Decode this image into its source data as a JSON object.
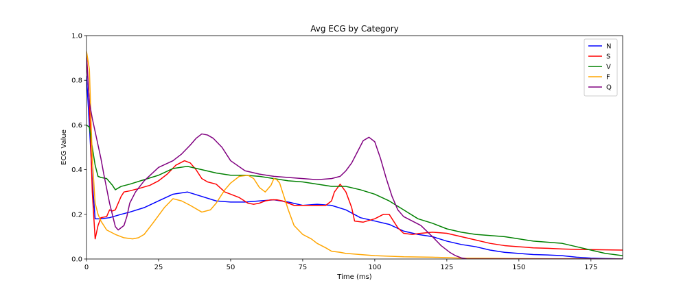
{
  "chart_data": {
    "type": "line",
    "title": "Avg ECG by Category",
    "xlabel": "Time (ms)",
    "ylabel": "ECG Value",
    "xlim": [
      0,
      186
    ],
    "ylim": [
      0,
      1.0
    ],
    "xticks": [
      0,
      25,
      50,
      75,
      100,
      125,
      150,
      175
    ],
    "yticks": [
      0.0,
      0.2,
      0.4,
      0.6,
      0.8,
      1.0
    ],
    "ytick_labels": [
      "0.0",
      "0.2",
      "0.4",
      "0.6",
      "0.8",
      "1.0"
    ],
    "grid": false,
    "legend_position": "top-right",
    "series": [
      {
        "name": "N",
        "color": "#0000ff",
        "x": [
          0,
          1,
          2,
          3,
          5,
          8,
          12,
          15,
          20,
          25,
          30,
          35,
          40,
          45,
          50,
          55,
          60,
          65,
          70,
          75,
          80,
          85,
          90,
          95,
          100,
          105,
          110,
          115,
          120,
          125,
          130,
          135,
          140,
          145,
          150,
          155,
          160,
          165,
          170,
          175,
          180,
          186
        ],
        "y": [
          0.82,
          0.6,
          0.35,
          0.18,
          0.18,
          0.185,
          0.2,
          0.21,
          0.23,
          0.26,
          0.29,
          0.3,
          0.28,
          0.26,
          0.255,
          0.255,
          0.26,
          0.265,
          0.255,
          0.24,
          0.245,
          0.24,
          0.22,
          0.185,
          0.17,
          0.155,
          0.125,
          0.11,
          0.1,
          0.08,
          0.065,
          0.055,
          0.04,
          0.03,
          0.025,
          0.02,
          0.018,
          0.015,
          0.008,
          0.004,
          0.002,
          0.0
        ]
      },
      {
        "name": "S",
        "color": "#ff0000",
        "x": [
          0,
          1,
          2,
          3,
          4,
          5,
          7,
          8,
          9,
          10,
          12,
          13,
          15,
          18,
          22,
          25,
          28,
          31,
          34,
          36,
          38,
          40,
          42,
          45,
          48,
          50,
          53,
          56,
          58,
          60,
          62,
          64,
          66,
          68,
          70,
          72,
          75,
          78,
          80,
          83,
          85,
          86,
          88,
          90,
          92,
          93,
          96,
          100,
          103,
          105,
          108,
          110,
          113,
          116,
          120,
          125,
          130,
          135,
          140,
          145,
          150,
          155,
          160,
          165,
          170,
          175,
          180,
          186
        ],
        "y": [
          0.92,
          0.7,
          0.3,
          0.09,
          0.15,
          0.185,
          0.19,
          0.22,
          0.215,
          0.22,
          0.28,
          0.3,
          0.305,
          0.315,
          0.33,
          0.35,
          0.38,
          0.42,
          0.44,
          0.43,
          0.4,
          0.36,
          0.345,
          0.335,
          0.3,
          0.29,
          0.275,
          0.25,
          0.245,
          0.25,
          0.26,
          0.265,
          0.265,
          0.26,
          0.25,
          0.24,
          0.24,
          0.24,
          0.24,
          0.24,
          0.26,
          0.3,
          0.335,
          0.3,
          0.23,
          0.17,
          0.165,
          0.18,
          0.2,
          0.2,
          0.14,
          0.115,
          0.11,
          0.115,
          0.12,
          0.115,
          0.1,
          0.085,
          0.07,
          0.06,
          0.055,
          0.05,
          0.048,
          0.045,
          0.043,
          0.042,
          0.041,
          0.04
        ]
      },
      {
        "name": "V",
        "color": "#008000",
        "x": [
          0,
          1,
          2,
          3,
          4,
          5,
          7,
          9,
          10,
          12,
          15,
          20,
          25,
          30,
          35,
          40,
          45,
          50,
          55,
          60,
          65,
          70,
          75,
          80,
          85,
          90,
          95,
          100,
          105,
          110,
          115,
          120,
          125,
          130,
          135,
          140,
          145,
          150,
          155,
          160,
          165,
          170,
          175,
          180,
          186
        ],
        "y": [
          0.6,
          0.59,
          0.5,
          0.42,
          0.37,
          0.365,
          0.36,
          0.33,
          0.31,
          0.325,
          0.335,
          0.355,
          0.375,
          0.405,
          0.415,
          0.4,
          0.385,
          0.375,
          0.375,
          0.37,
          0.36,
          0.35,
          0.345,
          0.335,
          0.325,
          0.325,
          0.31,
          0.29,
          0.26,
          0.22,
          0.18,
          0.16,
          0.135,
          0.12,
          0.11,
          0.105,
          0.1,
          0.09,
          0.08,
          0.075,
          0.07,
          0.055,
          0.04,
          0.025,
          0.015
        ]
      },
      {
        "name": "F",
        "color": "#ffa500",
        "x": [
          0,
          1,
          2,
          3,
          4,
          5,
          7,
          10,
          13,
          16,
          18,
          20,
          23,
          27,
          30,
          33,
          36,
          40,
          43,
          45,
          48,
          50,
          53,
          56,
          58,
          60,
          62,
          64,
          65,
          66,
          67,
          68,
          70,
          72,
          75,
          78,
          80,
          83,
          85,
          88,
          90,
          95,
          100,
          110,
          120,
          125,
          130,
          140,
          150,
          160,
          170,
          180,
          186
        ],
        "y": [
          0.93,
          0.85,
          0.45,
          0.25,
          0.2,
          0.17,
          0.13,
          0.11,
          0.095,
          0.09,
          0.095,
          0.11,
          0.16,
          0.23,
          0.27,
          0.26,
          0.24,
          0.21,
          0.22,
          0.25,
          0.31,
          0.34,
          0.37,
          0.375,
          0.36,
          0.32,
          0.3,
          0.33,
          0.36,
          0.355,
          0.34,
          0.3,
          0.22,
          0.15,
          0.11,
          0.09,
          0.07,
          0.05,
          0.035,
          0.03,
          0.025,
          0.02,
          0.015,
          0.01,
          0.008,
          0.006,
          0.004,
          0.003,
          0.002,
          0.001,
          0.001,
          0.0,
          0.0
        ]
      },
      {
        "name": "Q",
        "color": "#800080",
        "x": [
          0,
          1,
          2,
          3,
          4,
          5,
          6,
          8,
          10,
          11,
          13,
          14,
          15,
          17,
          20,
          25,
          30,
          33,
          36,
          38,
          40,
          42,
          44,
          47,
          50,
          55,
          60,
          65,
          70,
          75,
          80,
          85,
          88,
          90,
          92,
          94,
          96,
          98,
          100,
          102,
          104,
          106,
          108,
          110,
          113,
          116,
          120,
          123,
          126,
          128,
          130,
          132,
          135,
          140,
          145,
          150,
          160,
          170,
          180,
          186
        ],
        "y": [
          0.9,
          0.7,
          0.63,
          0.57,
          0.51,
          0.45,
          0.38,
          0.25,
          0.145,
          0.13,
          0.15,
          0.19,
          0.25,
          0.3,
          0.35,
          0.41,
          0.44,
          0.47,
          0.51,
          0.54,
          0.56,
          0.555,
          0.54,
          0.5,
          0.44,
          0.395,
          0.38,
          0.37,
          0.365,
          0.36,
          0.355,
          0.36,
          0.37,
          0.395,
          0.43,
          0.48,
          0.53,
          0.545,
          0.525,
          0.45,
          0.36,
          0.28,
          0.22,
          0.19,
          0.17,
          0.15,
          0.1,
          0.06,
          0.03,
          0.015,
          0.005,
          0.0,
          0.0,
          0.0,
          0.0,
          0.0,
          0.0,
          0.0,
          0.0,
          0.0
        ]
      }
    ]
  }
}
